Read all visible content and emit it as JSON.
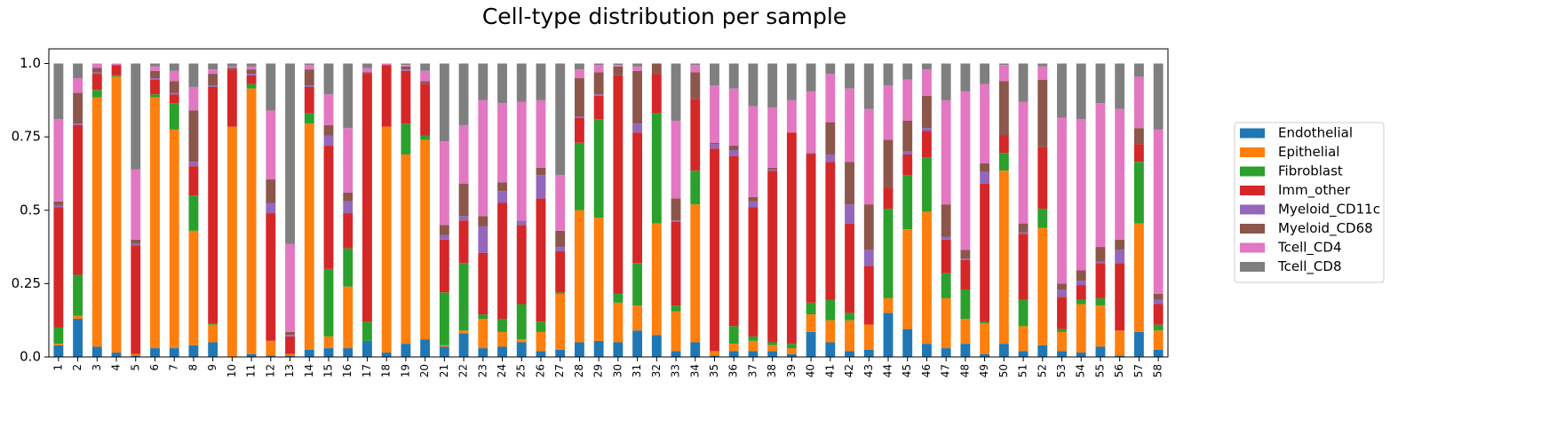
{
  "chart_data": {
    "type": "stacked-bar",
    "title": "Cell-type distribution per sample",
    "categories": [
      "1",
      "2",
      "3",
      "4",
      "5",
      "6",
      "7",
      "8",
      "9",
      "10",
      "11",
      "12",
      "13",
      "14",
      "15",
      "16",
      "17",
      "18",
      "19",
      "20",
      "21",
      "22",
      "23",
      "24",
      "25",
      "26",
      "27",
      "28",
      "29",
      "30",
      "31",
      "32",
      "33",
      "34",
      "35",
      "36",
      "37",
      "38",
      "39",
      "40",
      "41",
      "42",
      "43",
      "44",
      "45",
      "46",
      "47",
      "48",
      "49",
      "50",
      "51",
      "52",
      "53",
      "54",
      "55",
      "56",
      "57",
      "58"
    ],
    "series": [
      {
        "name": "Endothelial",
        "color": "#1f77b4",
        "values": [
          0.04,
          0.13,
          0.035,
          0.015,
          0.005,
          0.03,
          0.03,
          0.04,
          0.05,
          0,
          0.01,
          0.005,
          0.005,
          0.025,
          0.03,
          0.03,
          0.055,
          0.015,
          0.045,
          0.06,
          0.035,
          0.08,
          0.03,
          0.035,
          0.05,
          0.02,
          0.025,
          0.05,
          0.055,
          0.05,
          0.09,
          0.075,
          0.02,
          0.05,
          0.005,
          0.02,
          0.02,
          0.02,
          0.01,
          0.085,
          0.05,
          0.02,
          0.025,
          0.15,
          0.095,
          0.045,
          0.03,
          0.045,
          0.01,
          0.045,
          0.02,
          0.04,
          0.02,
          0.015,
          0.035,
          0.005,
          0.085,
          0.025
        ]
      },
      {
        "name": "Epithelial",
        "color": "#ff7f0e",
        "values": [
          0.005,
          0.01,
          0.85,
          0.94,
          0.005,
          0.855,
          0.745,
          0.39,
          0.06,
          0.785,
          0.905,
          0.05,
          0.005,
          0.77,
          0.04,
          0.21,
          0,
          0.77,
          0.645,
          0.68,
          0.005,
          0.01,
          0.1,
          0.05,
          0.01,
          0.065,
          0.19,
          0.45,
          0.42,
          0.135,
          0.085,
          0.38,
          0.135,
          0.47,
          0.015,
          0.025,
          0.035,
          0.02,
          0.02,
          0.06,
          0.075,
          0.105,
          0.085,
          0.05,
          0.34,
          0.45,
          0.17,
          0.085,
          0.105,
          0.59,
          0.085,
          0.4,
          0.065,
          0.165,
          0.14,
          0.085,
          0.37,
          0.065
        ]
      },
      {
        "name": "Fibroblast",
        "color": "#2ca02c",
        "values": [
          0.055,
          0.14,
          0.025,
          0.005,
          0,
          0.01,
          0.09,
          0.12,
          0.005,
          0,
          0.015,
          0,
          0,
          0.035,
          0.23,
          0.13,
          0.065,
          0,
          0.105,
          0.015,
          0.18,
          0.23,
          0.015,
          0.045,
          0.12,
          0.035,
          0.005,
          0.23,
          0.335,
          0.03,
          0.145,
          0.375,
          0.02,
          0.115,
          0,
          0.06,
          0.015,
          0.01,
          0.015,
          0.04,
          0.07,
          0.025,
          0,
          0.305,
          0.185,
          0.185,
          0.085,
          0.1,
          0.005,
          0.06,
          0.09,
          0.065,
          0.01,
          0.015,
          0.025,
          0,
          0.21,
          0.02
        ]
      },
      {
        "name": "Imm_other",
        "color": "#d62728",
        "values": [
          0.41,
          0.51,
          0.055,
          0.035,
          0.37,
          0.05,
          0.03,
          0.1,
          0.805,
          0.195,
          0.03,
          0.435,
          0.06,
          0.09,
          0.42,
          0.12,
          0.845,
          0.21,
          0.18,
          0.175,
          0.18,
          0.145,
          0.21,
          0.395,
          0.27,
          0.42,
          0.14,
          0.085,
          0.08,
          0.745,
          0.445,
          0.135,
          0.285,
          0.245,
          0.69,
          0.58,
          0.44,
          0.585,
          0.72,
          0.505,
          0.47,
          0.305,
          0.2,
          0.07,
          0.07,
          0.09,
          0.115,
          0.1,
          0.47,
          0.06,
          0.225,
          0.21,
          0.11,
          0.05,
          0.12,
          0.23,
          0.06,
          0.07
        ]
      },
      {
        "name": "Myeloid_CD11c",
        "color": "#9467bd",
        "values": [
          0.005,
          0.005,
          0.005,
          0,
          0.005,
          0.005,
          0.005,
          0.015,
          0.005,
          0,
          0.005,
          0.035,
          0.005,
          0.005,
          0.035,
          0.04,
          0,
          0,
          0.005,
          0,
          0.015,
          0.015,
          0.09,
          0.04,
          0.015,
          0.08,
          0.015,
          0.005,
          0.005,
          0,
          0.03,
          0,
          0.005,
          0,
          0.015,
          0.02,
          0.02,
          0.005,
          0,
          0,
          0.025,
          0.065,
          0.055,
          0,
          0.01,
          0.01,
          0.01,
          0.005,
          0.04,
          0,
          0.005,
          0,
          0.025,
          0.015,
          0.005,
          0.045,
          0,
          0.015
        ]
      },
      {
        "name": "Myeloid_CD68",
        "color": "#8c564b",
        "values": [
          0.015,
          0.105,
          0.015,
          0,
          0.015,
          0.025,
          0.04,
          0.175,
          0.04,
          0.005,
          0.015,
          0.08,
          0.01,
          0.055,
          0.035,
          0.03,
          0.005,
          0,
          0.01,
          0.01,
          0.035,
          0.11,
          0.035,
          0.03,
          0,
          0.025,
          0.055,
          0.13,
          0.075,
          0.03,
          0.18,
          0.035,
          0.075,
          0.09,
          0.005,
          0.015,
          0.015,
          0.005,
          0,
          0.005,
          0.11,
          0.145,
          0.155,
          0.165,
          0.105,
          0.11,
          0.11,
          0.03,
          0.03,
          0.185,
          0.03,
          0.23,
          0.02,
          0.035,
          0.05,
          0.035,
          0.055,
          0.02
        ]
      },
      {
        "name": "Tcell_CD4",
        "color": "#e377c2",
        "values": [
          0.28,
          0.05,
          0.015,
          0.005,
          0.24,
          0.015,
          0.035,
          0.08,
          0.015,
          0.005,
          0.01,
          0.235,
          0.3,
          0.015,
          0.105,
          0.22,
          0.015,
          0.005,
          0.005,
          0.035,
          0.285,
          0.2,
          0.395,
          0.27,
          0.405,
          0.23,
          0.19,
          0.03,
          0.025,
          0.005,
          0.015,
          0,
          0.265,
          0.025,
          0.195,
          0.195,
          0.31,
          0.205,
          0.11,
          0.21,
          0.165,
          0.25,
          0.325,
          0.185,
          0.14,
          0.09,
          0.355,
          0.54,
          0.27,
          0.055,
          0.415,
          0.045,
          0.565,
          0.515,
          0.49,
          0.445,
          0.175,
          0.56
        ]
      },
      {
        "name": "Tcell_CD8",
        "color": "#7f7f7f",
        "values": [
          0.19,
          0.05,
          0,
          0,
          0.36,
          0.01,
          0.025,
          0.08,
          0.02,
          0.01,
          0.01,
          0.16,
          0.615,
          0.005,
          0.105,
          0.22,
          0.015,
          0,
          0.005,
          0.025,
          0.265,
          0.21,
          0.125,
          0.135,
          0.13,
          0.125,
          0.38,
          0.02,
          0.005,
          0.005,
          0.01,
          0,
          0.195,
          0.005,
          0.075,
          0.085,
          0.145,
          0.15,
          0.125,
          0.095,
          0.035,
          0.085,
          0.155,
          0.075,
          0.055,
          0.02,
          0.125,
          0.095,
          0.07,
          0.005,
          0.13,
          0.01,
          0.185,
          0.19,
          0.135,
          0.155,
          0.045,
          0.225
        ]
      }
    ],
    "ylim": [
      0,
      1.05
    ],
    "yticks": [
      {
        "value": 0,
        "label": "0.0"
      },
      0.25,
      {
        "value": 0.5,
        "label": "0.5"
      },
      0.75,
      {
        "value": 1,
        "label": "1.0"
      }
    ],
    "grid": false,
    "legend": "right"
  }
}
